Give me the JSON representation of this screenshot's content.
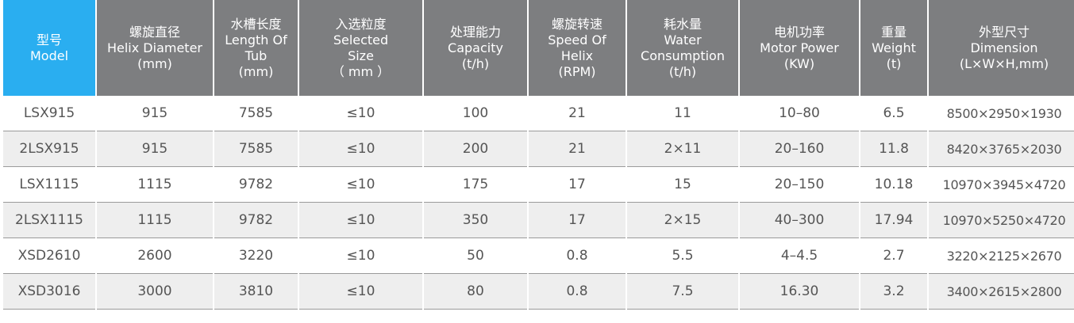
{
  "headers": [
    {
      "zh": "型号",
      "en": "Model"
    },
    {
      "zh": "螺旋直径",
      "en": "Helix Diameter",
      "unit": "(mm)"
    },
    {
      "zh": "水槽长度",
      "en": "Length Of",
      "en2": "Tub",
      "unit": "(mm)"
    },
    {
      "zh": "入选粒度",
      "en": "Selected",
      "en2": "Size",
      "unit": "（ mm ）"
    },
    {
      "zh": "处理能力",
      "en": "Capacity",
      "unit": "(t/h)"
    },
    {
      "zh": "螺旋转速",
      "en": "Speed Of",
      "en2": "Helix",
      "unit": "(RPM)"
    },
    {
      "zh": "耗水量",
      "en": "Water",
      "en2": "Consumption",
      "unit": "(t/h)"
    },
    {
      "zh": "电机功率",
      "en": "Motor Power",
      "unit": "(KW)"
    },
    {
      "zh": "重量",
      "en": "Weight",
      "unit": "(t)"
    },
    {
      "zh": "外型尺寸",
      "en": "Dimension",
      "unit": "(L×W×H,mm)"
    }
  ],
  "rows": [
    [
      "LSX915",
      "915",
      "7585",
      "≤10",
      "100",
      "21",
      "11",
      "10–80",
      "6.5",
      "8500×2950×1930"
    ],
    [
      "2LSX915",
      "915",
      "7585",
      "≤10",
      "200",
      "21",
      "2×11",
      "20–160",
      "11.8",
      "8420×3765×2030"
    ],
    [
      "LSX1115",
      "1115",
      "9782",
      "≤10",
      "175",
      "17",
      "15",
      "20–150",
      "10.18",
      "10970×3945×4720"
    ],
    [
      "2LSX1115",
      "1115",
      "9782",
      "≤10",
      "350",
      "17",
      "2×15",
      "40–300",
      "17.94",
      "10970×5250×4720"
    ],
    [
      "XSD2610",
      "2600",
      "3220",
      "≤10",
      "50",
      "0.8",
      "5.5",
      "4–4.5",
      "2.7",
      "3220×2125×2670"
    ],
    [
      "XSD3016",
      "3000",
      "3810",
      "≤10",
      "80",
      "0.8",
      "7.5",
      "16.30",
      "3.2",
      "3400×2615×2800"
    ]
  ],
  "colors": {
    "header_bg": "#7d7e80",
    "model_header_bg": "#2aaef0",
    "zebra_bg": "#eeeeee",
    "text": "#555555"
  }
}
